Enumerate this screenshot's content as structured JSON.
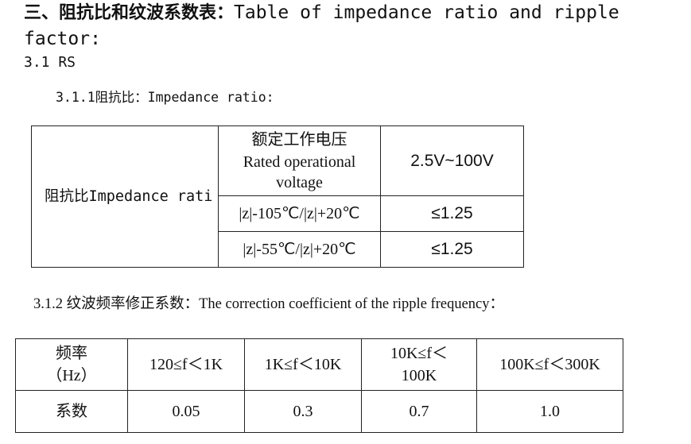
{
  "heading": {
    "prefix": "三、阻抗比和纹波系数表：",
    "title_en": "Table of impedance ratio and ripple factor:"
  },
  "section": {
    "title": "3.1 RS"
  },
  "impedance": {
    "title": "3.1.1阻抗比：Impedance ratio:",
    "row_label": "阻抗比Impedance rati",
    "voltage_cn": "额定工作电压",
    "voltage_en": "Rated operational voltage",
    "voltage_value": "2.5V~100V",
    "rows": [
      {
        "condition": "|z|-105℃/|z|+20℃",
        "value": "≤1.25"
      },
      {
        "condition": "|z|-55℃/|z|+20℃",
        "value": "≤1.25"
      }
    ]
  },
  "ripple": {
    "title": "3.1.2 纹波频率修正系数：The correction coefficient of the ripple frequency：",
    "freq_label": "频率（Hz）",
    "coef_label": "系数",
    "ranges": [
      "120≤f＜1K",
      "1K≤f＜10K",
      "10K≤f＜100K",
      "100K≤f＜300K"
    ],
    "coefficients": [
      "0.05",
      "0.3",
      "0.7",
      "1.0"
    ]
  }
}
